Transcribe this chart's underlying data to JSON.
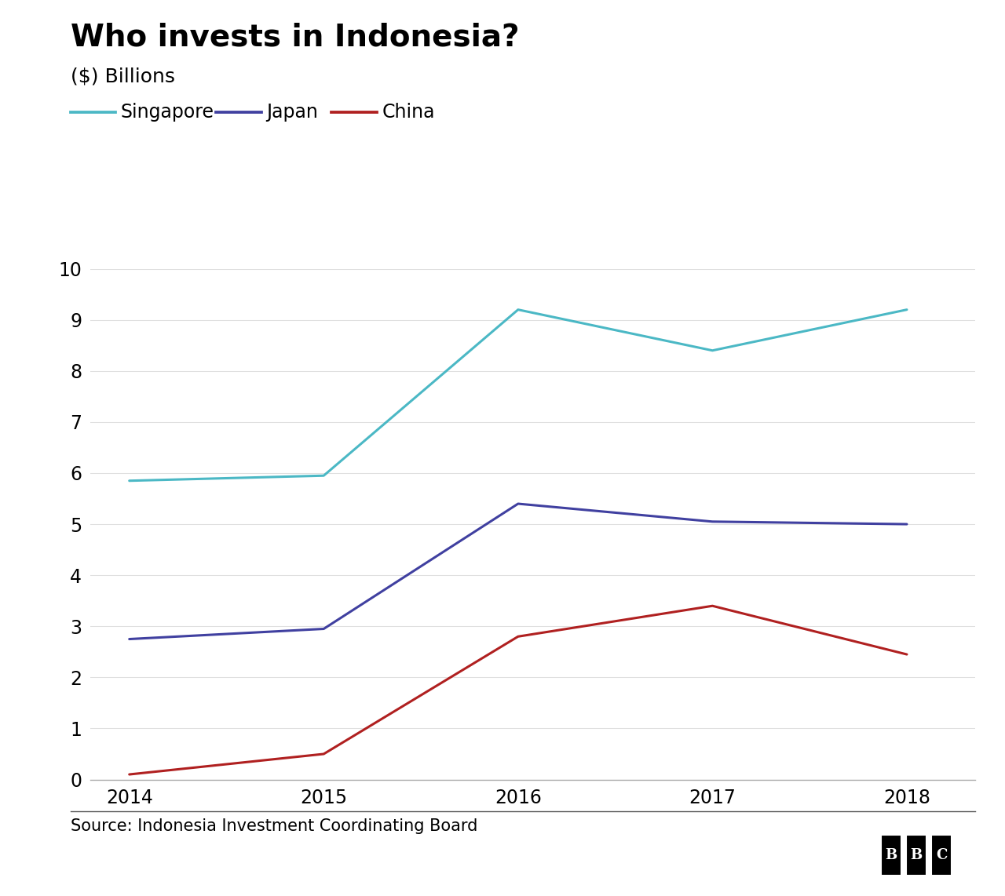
{
  "title": "Who invests in Indonesia?",
  "subtitle": "($) Billions",
  "source": "Source: Indonesia Investment Coordinating Board",
  "years": [
    2014,
    2015,
    2016,
    2017,
    2018
  ],
  "singapore": [
    5.85,
    5.95,
    9.2,
    8.4,
    9.2
  ],
  "japan": [
    2.75,
    2.95,
    5.4,
    5.05,
    5.0
  ],
  "china": [
    0.1,
    0.5,
    2.8,
    3.4,
    2.45
  ],
  "singapore_color": "#4bb8c5",
  "japan_color": "#4040a0",
  "china_color": "#b02020",
  "line_width": 2.2,
  "ylim": [
    0,
    10
  ],
  "yticks": [
    0,
    1,
    2,
    3,
    4,
    5,
    6,
    7,
    8,
    9,
    10
  ],
  "background_color": "#ffffff",
  "title_fontsize": 28,
  "subtitle_fontsize": 18,
  "legend_fontsize": 17,
  "tick_fontsize": 17,
  "source_fontsize": 15
}
